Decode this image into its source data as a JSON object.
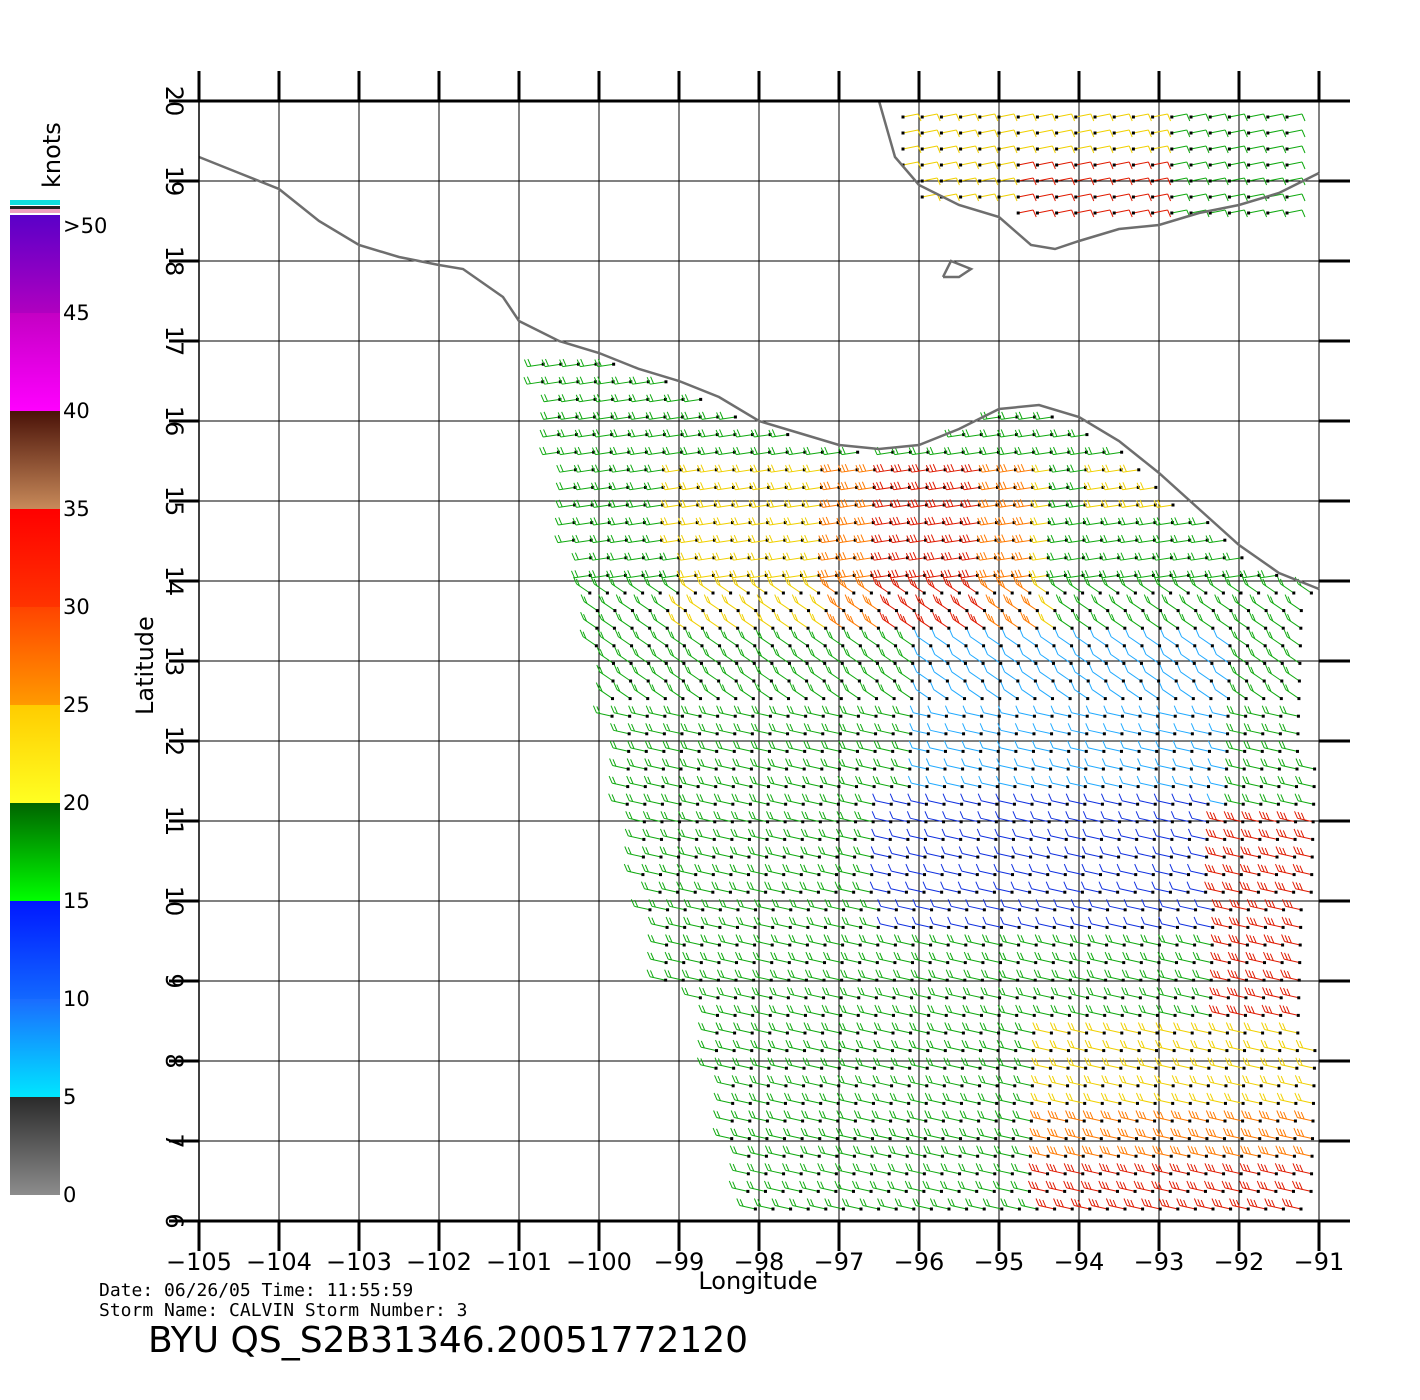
{
  "product_title": "BYU  QS_S2B31346.20051772120",
  "info": {
    "date_line": "Date: 06/26/05   Time: 11:55:59",
    "storm_line": "Storm Name: CALVIN   Storm Number: 3"
  },
  "axes": {
    "x_label": "Longitude",
    "y_label": "Latitude",
    "lon_range": [
      -105,
      -91
    ],
    "lat_range": [
      6,
      20
    ],
    "lon_ticks": [
      "−105",
      "−104",
      "−103",
      "−102",
      "−101",
      "−100",
      "−99",
      "−98",
      "−97",
      "−96",
      "−95",
      "−94",
      "−93",
      "−92",
      "−91"
    ],
    "lat_ticks": [
      "6",
      "7",
      "8",
      "9",
      "10",
      "11",
      "12",
      "13",
      "14",
      "15",
      "16",
      "17",
      "18",
      "19",
      "20"
    ],
    "grid": true
  },
  "colorbar": {
    "unit": "knots",
    "labels": [
      ">50",
      "45",
      "40",
      "35",
      "30",
      "25",
      "20",
      "15",
      "10",
      "5",
      "0"
    ],
    "bands": [
      {
        "from": 0,
        "to": 5,
        "top": "#2a2a2a",
        "bottom": "#8c8c8c"
      },
      {
        "from": 5,
        "to": 10,
        "top": "#1a6cff",
        "bottom": "#00e6ff"
      },
      {
        "from": 10,
        "to": 15,
        "top": "#0018ff",
        "bottom": "#1268ff"
      },
      {
        "from": 15,
        "to": 20,
        "top": "#006400",
        "bottom": "#00ff00"
      },
      {
        "from": 20,
        "to": 25,
        "top": "#ffcc00",
        "bottom": "#ffff22"
      },
      {
        "from": 25,
        "to": 30,
        "top": "#ff4400",
        "bottom": "#ff9a00"
      },
      {
        "from": 30,
        "to": 35,
        "top": "#ff0000",
        "bottom": "#ff3300"
      },
      {
        "from": 35,
        "to": 40,
        "top": "#4a1208",
        "bottom": "#c88a5a"
      },
      {
        "from": 40,
        "to": 45,
        "top": "#c400c4",
        "bottom": "#ff00ff"
      },
      {
        "from": 45,
        "to": 50,
        "top": "#5a00c8",
        "bottom": "#b000c0"
      }
    ]
  },
  "coastline_color": "#6e6e6e",
  "chart_data": {
    "type": "wind-barb map",
    "lon_range": [
      -105,
      -91
    ],
    "lat_range": [
      6,
      20
    ],
    "coastlines": [
      [
        [
          -105,
          19.3
        ],
        [
          -104.5,
          19.1
        ],
        [
          -104,
          18.9
        ],
        [
          -103.5,
          18.5
        ],
        [
          -103,
          18.2
        ],
        [
          -102.5,
          18.05
        ],
        [
          -102,
          17.95
        ],
        [
          -101.7,
          17.9
        ],
        [
          -101.2,
          17.55
        ],
        [
          -101,
          17.25
        ],
        [
          -100.5,
          17.0
        ],
        [
          -100,
          16.85
        ],
        [
          -99.5,
          16.65
        ],
        [
          -99,
          16.5
        ],
        [
          -98.5,
          16.3
        ],
        [
          -98,
          16.0
        ],
        [
          -97.5,
          15.85
        ],
        [
          -97,
          15.7
        ],
        [
          -96.5,
          15.65
        ],
        [
          -96,
          15.7
        ],
        [
          -95.5,
          15.9
        ],
        [
          -95,
          16.15
        ],
        [
          -94.5,
          16.2
        ],
        [
          -94,
          16.05
        ],
        [
          -93.5,
          15.75
        ],
        [
          -93,
          15.35
        ],
        [
          -92.5,
          14.9
        ],
        [
          -92,
          14.45
        ],
        [
          -91.5,
          14.1
        ],
        [
          -91,
          13.9
        ]
      ],
      [
        [
          -96.5,
          20
        ],
        [
          -96.3,
          19.3
        ],
        [
          -96,
          18.95
        ],
        [
          -95.5,
          18.7
        ],
        [
          -95,
          18.55
        ],
        [
          -94.6,
          18.2
        ],
        [
          -94.3,
          18.15
        ],
        [
          -94,
          18.25
        ],
        [
          -93.5,
          18.4
        ],
        [
          -93,
          18.45
        ],
        [
          -92.5,
          18.6
        ],
        [
          -92,
          18.7
        ],
        [
          -91.5,
          18.85
        ],
        [
          -91,
          19.1
        ]
      ],
      [
        [
          -95.7,
          17.8
        ],
        [
          -95.6,
          18.0
        ],
        [
          -95.35,
          17.9
        ],
        [
          -95.5,
          17.8
        ],
        [
          -95.7,
          17.8
        ]
      ]
    ]
  }
}
